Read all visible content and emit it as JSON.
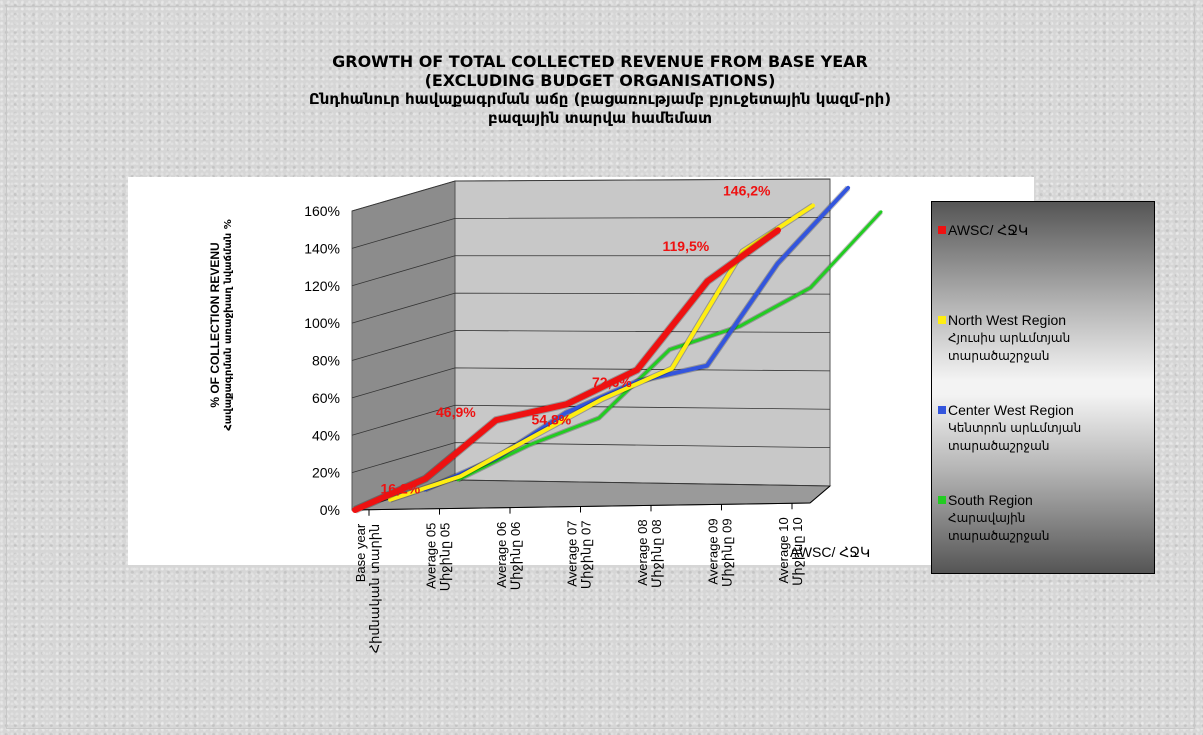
{
  "title": {
    "line1": "GROWTH OF TOTAL COLLECTED REVENUE FROM BASE YEAR",
    "line2": "(EXCLUDING BUDGET ORGANISATIONS)",
    "line3": "Ընդհանուր հավաքագրման աճը (բացառությամբ բյուջետային կազմ-րի)",
    "line4": "բազային տարվա համեմատ"
  },
  "chart_data": {
    "type": "line",
    "title": "GROWTH OF TOTAL COLLECTED REVENUE FROM BASE YEAR (EXCLUDING BUDGET ORGANISATIONS)",
    "ylabel": "% OF COLLECTION REVENU",
    "ylabel_sub": "Հավաքագրման առաջխաղ նվաճման %",
    "zlabel": "AWSC/ ՀՋԿ",
    "ylim": [
      0,
      160
    ],
    "yticks": [
      "0%",
      "20%",
      "40%",
      "60%",
      "80%",
      "100%",
      "120%",
      "140%",
      "160%"
    ],
    "grid": true,
    "legend_position": "right",
    "categories": [
      {
        "en": "Base year",
        "am": "Հիմնական տարին"
      },
      {
        "en": "Average 05",
        "am": "Միջինը 05"
      },
      {
        "en": "Average 06",
        "am": "Միջինը 06"
      },
      {
        "en": "Average 07",
        "am": "Միջինը 07"
      },
      {
        "en": "Average 08",
        "am": "Միջինը 08"
      },
      {
        "en": "Average 09",
        "am": "Միջինը 09"
      },
      {
        "en": "Average 10",
        "am": "Միջինը 10"
      }
    ],
    "series": [
      {
        "name": "South Region",
        "sub": "Հարավային\nտարածաշրջան",
        "color": "#22cc22",
        "values": [
          0,
          18,
          32,
          68,
          80,
          100,
          140
        ]
      },
      {
        "name": "Center West Region",
        "sub": "Կենտրոն արևմտյան\nտարածաշրջան",
        "color": "#3355dd",
        "values": [
          0,
          16,
          40,
          56,
          64,
          118,
          158
        ]
      },
      {
        "name": "North West Region",
        "sub": "Հյուսիս արևմտյան\nտարածաշրջան",
        "color": "#ffee11",
        "values": [
          0,
          12,
          32,
          52,
          68,
          130,
          154
        ]
      },
      {
        "name": "AWSC/ ՀՋԿ",
        "sub": "",
        "color": "#ee1111",
        "values": [
          0,
          16.2,
          46.9,
          54.8,
          72.6,
          119.5,
          146.2
        ]
      }
    ],
    "data_labels": [
      "",
      "16,2%",
      "46,9%",
      "54,8%",
      "72,6%",
      "119,5%",
      "146,2%"
    ],
    "label_color": "#ee1111"
  }
}
